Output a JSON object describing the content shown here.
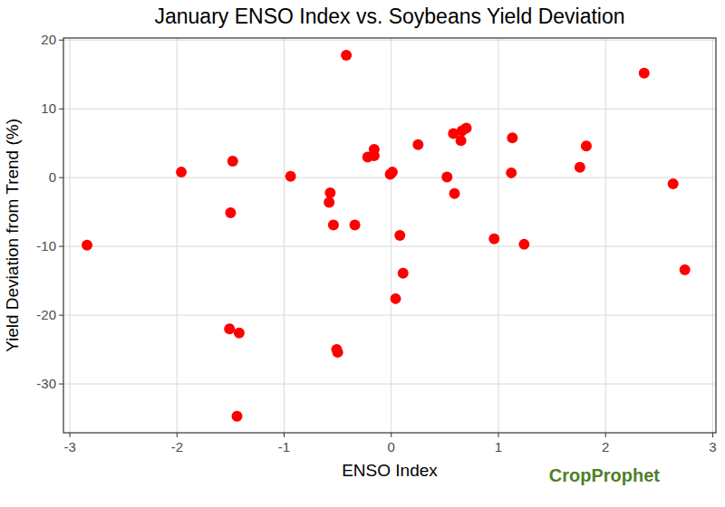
{
  "chart_data": {
    "type": "scatter",
    "title": "January ENSO Index vs. Soybeans Yield Deviation",
    "x_label": "ENSO Index",
    "y_label": "Yield Deviation from Trend (%)",
    "annotations": [
      "CropProphet"
    ],
    "x": [
      -2.84,
      -1.96,
      -1.48,
      -1.5,
      -1.51,
      -1.42,
      -1.44,
      -0.94,
      -0.42,
      -0.57,
      -0.58,
      -0.54,
      -0.34,
      -0.51,
      -0.5,
      -0.22,
      -0.16,
      -0.16,
      -0.01,
      0.01,
      0.08,
      0.11,
      0.04,
      0.25,
      0.52,
      0.58,
      0.59,
      0.65,
      0.66,
      0.7,
      0.96,
      1.13,
      1.12,
      1.24,
      1.76,
      1.82,
      2.36,
      2.63,
      2.74
    ],
    "y": [
      -9.8,
      0.8,
      2.4,
      -5.1,
      -22.0,
      -22.6,
      -34.7,
      0.2,
      17.8,
      -2.2,
      -3.6,
      -6.9,
      -6.9,
      -25.0,
      -25.4,
      3.0,
      4.1,
      3.2,
      0.5,
      0.8,
      -8.4,
      -13.9,
      -17.6,
      4.8,
      0.1,
      6.4,
      -2.3,
      5.4,
      6.8,
      7.2,
      -8.9,
      5.8,
      0.7,
      -9.7,
      1.5,
      4.6,
      15.2,
      -0.9,
      -13.4
    ],
    "color": "#ff0000",
    "marker": "circle",
    "xlim": [
      -3.06,
      3.03
    ],
    "ylim": [
      -37.1,
      20.3
    ],
    "xticks": [
      -3,
      -2,
      -1,
      0,
      1,
      2,
      3
    ],
    "yticks": [
      -30,
      -20,
      -10,
      0,
      10,
      20
    ],
    "grid": true
  }
}
